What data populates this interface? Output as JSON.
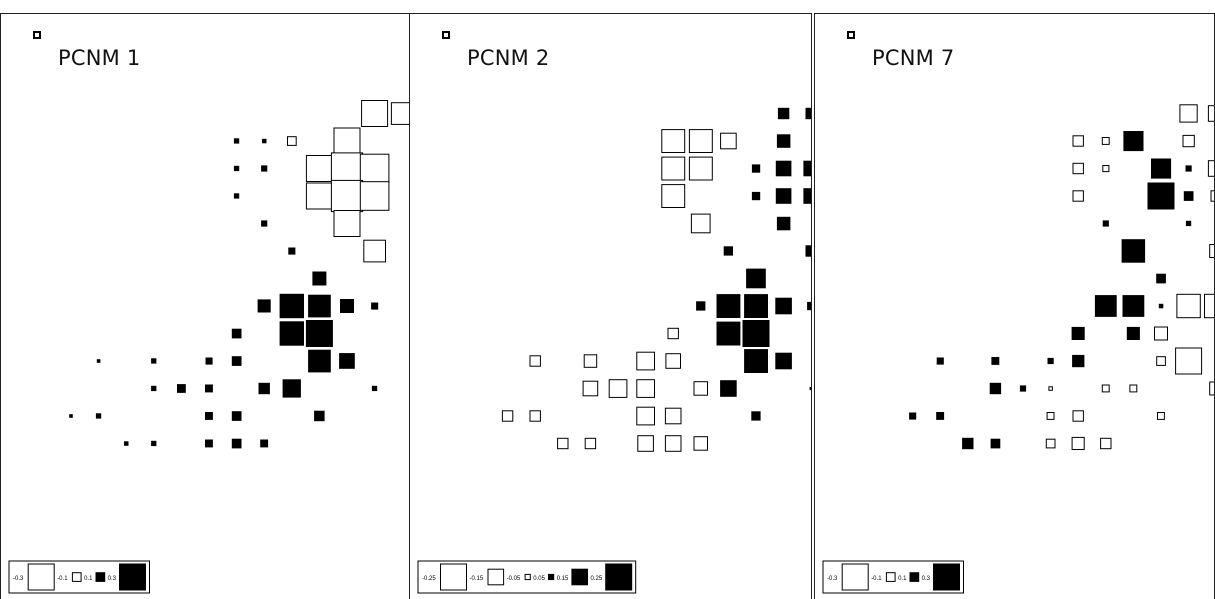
{
  "figure": {
    "panels": [
      {
        "title": "PCNM 1"
      },
      {
        "title": "PCNM 2"
      },
      {
        "title": "PCNM 7"
      }
    ]
  },
  "colors": {
    "positive": "#000000",
    "negative": "#ffffff",
    "stroke": "#000000"
  },
  "chart_data": [
    {
      "type": "bubble-square",
      "title": "PCNM 1",
      "grid": false,
      "legend_position": "bottom-left",
      "legend": [
        {
          "label": "-0.3",
          "value": -0.3
        },
        {
          "label": "-0.1",
          "value": -0.1
        },
        {
          "label": "0.1",
          "value": 0.1
        },
        {
          "label": "0.3",
          "value": 0.3
        }
      ],
      "points": [
        {
          "x": 12,
          "y": 1,
          "value": -0.3
        },
        {
          "x": 13,
          "y": 1,
          "value": -0.25
        },
        {
          "x": 7,
          "y": 2,
          "value": 0.05
        },
        {
          "x": 8,
          "y": 2,
          "value": 0.04
        },
        {
          "x": 9,
          "y": 2,
          "value": -0.1
        },
        {
          "x": 11,
          "y": 2,
          "value": -0.3
        },
        {
          "x": 7,
          "y": 3,
          "value": 0.05
        },
        {
          "x": 8,
          "y": 3,
          "value": 0.06
        },
        {
          "x": 10,
          "y": 3,
          "value": -0.3
        },
        {
          "x": 11,
          "y": 3,
          "value": -0.36
        },
        {
          "x": 12,
          "y": 3,
          "value": -0.33
        },
        {
          "x": 7,
          "y": 4,
          "value": 0.05
        },
        {
          "x": 10,
          "y": 4,
          "value": -0.3
        },
        {
          "x": 11,
          "y": 4,
          "value": -0.36
        },
        {
          "x": 12,
          "y": 4,
          "value": -0.33
        },
        {
          "x": 8,
          "y": 5,
          "value": 0.06
        },
        {
          "x": 11,
          "y": 5,
          "value": -0.3
        },
        {
          "x": 9,
          "y": 6,
          "value": 0.07
        },
        {
          "x": 12,
          "y": 6,
          "value": -0.25
        },
        {
          "x": 10,
          "y": 7,
          "value": 0.15
        },
        {
          "x": 8,
          "y": 8,
          "value": 0.14
        },
        {
          "x": 9,
          "y": 8,
          "value": 0.27
        },
        {
          "x": 10,
          "y": 8,
          "value": 0.25
        },
        {
          "x": 11,
          "y": 8,
          "value": 0.15
        },
        {
          "x": 12,
          "y": 8,
          "value": 0.07
        },
        {
          "x": 7,
          "y": 9,
          "value": 0.1
        },
        {
          "x": 9,
          "y": 9,
          "value": 0.27
        },
        {
          "x": 10,
          "y": 9,
          "value": 0.3
        },
        {
          "x": 2,
          "y": 10,
          "value": 0.03
        },
        {
          "x": 4,
          "y": 10,
          "value": 0.05
        },
        {
          "x": 6,
          "y": 10,
          "value": 0.07
        },
        {
          "x": 7,
          "y": 10,
          "value": 0.1
        },
        {
          "x": 10,
          "y": 10,
          "value": 0.25
        },
        {
          "x": 11,
          "y": 10,
          "value": 0.17
        },
        {
          "x": 4,
          "y": 11,
          "value": 0.05
        },
        {
          "x": 5,
          "y": 11,
          "value": 0.09
        },
        {
          "x": 6,
          "y": 11,
          "value": 0.08
        },
        {
          "x": 8,
          "y": 11,
          "value": 0.12
        },
        {
          "x": 9,
          "y": 11,
          "value": 0.2
        },
        {
          "x": 12,
          "y": 11,
          "value": 0.05
        },
        {
          "x": 1,
          "y": 12,
          "value": 0.03
        },
        {
          "x": 2,
          "y": 12,
          "value": 0.05
        },
        {
          "x": 6,
          "y": 12,
          "value": 0.08
        },
        {
          "x": 7,
          "y": 12,
          "value": 0.1
        },
        {
          "x": 10,
          "y": 12,
          "value": 0.11
        },
        {
          "x": 3,
          "y": 13,
          "value": 0.04
        },
        {
          "x": 4,
          "y": 13,
          "value": 0.05
        },
        {
          "x": 6,
          "y": 13,
          "value": 0.08
        },
        {
          "x": 7,
          "y": 13,
          "value": 0.1
        },
        {
          "x": 8,
          "y": 13,
          "value": 0.08
        }
      ]
    },
    {
      "type": "bubble-square",
      "title": "PCNM 2",
      "grid": false,
      "legend_position": "bottom-left",
      "legend": [
        {
          "label": "-0.25",
          "value": -0.25
        },
        {
          "label": "-0.15",
          "value": -0.15
        },
        {
          "label": "-0.05",
          "value": -0.05
        },
        {
          "label": "0.05",
          "value": 0.05
        },
        {
          "label": "0.15",
          "value": 0.15
        },
        {
          "label": "0.25",
          "value": 0.25
        }
      ],
      "points": [
        {
          "x": 12,
          "y": 1,
          "value": 0.1
        },
        {
          "x": 13,
          "y": 1,
          "value": 0.1
        },
        {
          "x": 8,
          "y": 2,
          "value": -0.22
        },
        {
          "x": 9,
          "y": 2,
          "value": -0.22
        },
        {
          "x": 10,
          "y": 2,
          "value": -0.15
        },
        {
          "x": 12,
          "y": 2,
          "value": 0.12
        },
        {
          "x": 8,
          "y": 3,
          "value": -0.22
        },
        {
          "x": 9,
          "y": 3,
          "value": -0.22
        },
        {
          "x": 11,
          "y": 3,
          "value": 0.07
        },
        {
          "x": 12,
          "y": 3,
          "value": 0.14
        },
        {
          "x": 13,
          "y": 3,
          "value": 0.14
        },
        {
          "x": 8,
          "y": 4,
          "value": -0.22
        },
        {
          "x": 11,
          "y": 4,
          "value": 0.07
        },
        {
          "x": 12,
          "y": 4,
          "value": 0.14
        },
        {
          "x": 13,
          "y": 4,
          "value": 0.14
        },
        {
          "x": 9,
          "y": 5,
          "value": -0.18
        },
        {
          "x": 12,
          "y": 5,
          "value": 0.12
        },
        {
          "x": 10,
          "y": 6,
          "value": 0.08
        },
        {
          "x": 13,
          "y": 6,
          "value": 0.1
        },
        {
          "x": 11,
          "y": 7,
          "value": 0.18
        },
        {
          "x": 9,
          "y": 8,
          "value": 0.08
        },
        {
          "x": 10,
          "y": 8,
          "value": 0.22
        },
        {
          "x": 11,
          "y": 8,
          "value": 0.22
        },
        {
          "x": 12,
          "y": 8,
          "value": 0.15
        },
        {
          "x": 13,
          "y": 8,
          "value": 0.07
        },
        {
          "x": 8,
          "y": 9,
          "value": -0.1
        },
        {
          "x": 10,
          "y": 9,
          "value": 0.22
        },
        {
          "x": 11,
          "y": 9,
          "value": 0.25
        },
        {
          "x": 3,
          "y": 10,
          "value": -0.1
        },
        {
          "x": 5,
          "y": 10,
          "value": -0.12
        },
        {
          "x": 7,
          "y": 10,
          "value": -0.17
        },
        {
          "x": 8,
          "y": 10,
          "value": -0.14
        },
        {
          "x": 11,
          "y": 10,
          "value": 0.22
        },
        {
          "x": 12,
          "y": 10,
          "value": 0.15
        },
        {
          "x": 5,
          "y": 11,
          "value": -0.14
        },
        {
          "x": 6,
          "y": 11,
          "value": -0.17
        },
        {
          "x": 7,
          "y": 11,
          "value": -0.17
        },
        {
          "x": 9,
          "y": 11,
          "value": -0.13
        },
        {
          "x": 10,
          "y": 11,
          "value": 0.15
        },
        {
          "x": 13,
          "y": 11,
          "value": 0.02
        },
        {
          "x": 2,
          "y": 12,
          "value": -0.1
        },
        {
          "x": 3,
          "y": 12,
          "value": -0.1
        },
        {
          "x": 7,
          "y": 12,
          "value": -0.17
        },
        {
          "x": 8,
          "y": 12,
          "value": -0.15
        },
        {
          "x": 11,
          "y": 12,
          "value": 0.08
        },
        {
          "x": 4,
          "y": 13,
          "value": -0.1
        },
        {
          "x": 5,
          "y": 13,
          "value": -0.1
        },
        {
          "x": 7,
          "y": 13,
          "value": -0.15
        },
        {
          "x": 8,
          "y": 13,
          "value": -0.15
        },
        {
          "x": 9,
          "y": 13,
          "value": -0.13
        }
      ]
    },
    {
      "type": "bubble-square",
      "title": "PCNM 7",
      "grid": false,
      "legend_position": "bottom-left",
      "legend": [
        {
          "label": "-0.3",
          "value": -0.3
        },
        {
          "label": "-0.1",
          "value": -0.1
        },
        {
          "label": "0.1",
          "value": 0.1
        },
        {
          "label": "0.3",
          "value": 0.3
        }
      ],
      "points": [
        {
          "x": 12,
          "y": 1,
          "value": -0.2
        },
        {
          "x": 13,
          "y": 1,
          "value": -0.18
        },
        {
          "x": 8,
          "y": 2,
          "value": -0.12
        },
        {
          "x": 9,
          "y": 2,
          "value": -0.08
        },
        {
          "x": 10,
          "y": 2,
          "value": 0.22
        },
        {
          "x": 12,
          "y": 2,
          "value": -0.13
        },
        {
          "x": 8,
          "y": 3,
          "value": -0.12
        },
        {
          "x": 9,
          "y": 3,
          "value": -0.07
        },
        {
          "x": 11,
          "y": 3,
          "value": 0.22
        },
        {
          "x": 12,
          "y": 3,
          "value": 0.06
        },
        {
          "x": 13,
          "y": 3,
          "value": -0.18
        },
        {
          "x": 8,
          "y": 4,
          "value": -0.12
        },
        {
          "x": 11,
          "y": 4,
          "value": 0.3
        },
        {
          "x": 12,
          "y": 4,
          "value": 0.1
        },
        {
          "x": 13,
          "y": 4,
          "value": -0.12
        },
        {
          "x": 9,
          "y": 5,
          "value": 0.06
        },
        {
          "x": 12,
          "y": 5,
          "value": 0.05
        },
        {
          "x": 10,
          "y": 6,
          "value": 0.26
        },
        {
          "x": 13,
          "y": 6,
          "value": -0.15
        },
        {
          "x": 11,
          "y": 7,
          "value": 0.1
        },
        {
          "x": 9,
          "y": 8,
          "value": 0.24
        },
        {
          "x": 10,
          "y": 8,
          "value": 0.24
        },
        {
          "x": 11,
          "y": 8,
          "value": 0.04
        },
        {
          "x": 12,
          "y": 8,
          "value": -0.27
        },
        {
          "x": 13,
          "y": 8,
          "value": -0.27
        },
        {
          "x": 8,
          "y": 9,
          "value": 0.14
        },
        {
          "x": 10,
          "y": 9,
          "value": 0.14
        },
        {
          "x": 11,
          "y": 9,
          "value": -0.15
        },
        {
          "x": 3,
          "y": 10,
          "value": 0.07
        },
        {
          "x": 5,
          "y": 10,
          "value": 0.08
        },
        {
          "x": 7,
          "y": 10,
          "value": 0.06
        },
        {
          "x": 8,
          "y": 10,
          "value": 0.13
        },
        {
          "x": 11,
          "y": 10,
          "value": -0.1
        },
        {
          "x": 12,
          "y": 10,
          "value": -0.3
        },
        {
          "x": 5,
          "y": 11,
          "value": 0.12
        },
        {
          "x": 6,
          "y": 11,
          "value": 0.06
        },
        {
          "x": 7,
          "y": 11,
          "value": -0.04
        },
        {
          "x": 9,
          "y": 11,
          "value": -0.08
        },
        {
          "x": 10,
          "y": 11,
          "value": -0.08
        },
        {
          "x": 13,
          "y": 11,
          "value": -0.15
        },
        {
          "x": 2,
          "y": 12,
          "value": 0.07
        },
        {
          "x": 3,
          "y": 12,
          "value": 0.08
        },
        {
          "x": 7,
          "y": 12,
          "value": -0.08
        },
        {
          "x": 8,
          "y": 12,
          "value": -0.12
        },
        {
          "x": 11,
          "y": 12,
          "value": -0.08
        },
        {
          "x": 4,
          "y": 13,
          "value": 0.12
        },
        {
          "x": 5,
          "y": 13,
          "value": 0.1
        },
        {
          "x": 7,
          "y": 13,
          "value": -0.1
        },
        {
          "x": 8,
          "y": 13,
          "value": -0.14
        },
        {
          "x": 9,
          "y": 13,
          "value": -0.12
        }
      ]
    }
  ]
}
